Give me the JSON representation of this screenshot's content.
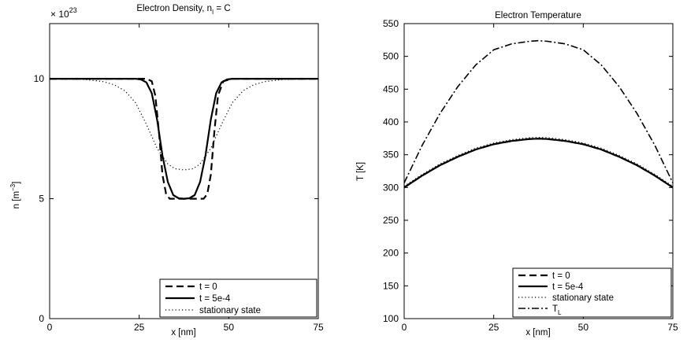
{
  "chart_data": [
    {
      "type": "line",
      "title": "Electron Density, n",
      "title_sub": "I",
      "title_suffix": " = C",
      "xlabel": "x [nm]",
      "ylabel": "n [m",
      "ylabel_sup": "−3",
      "ylabel_suffix": "]",
      "exponent_prefix": "× 10",
      "exponent_power": "23",
      "xlim": [
        0,
        75
      ],
      "ylim": [
        0,
        12.3
      ],
      "xticks": [
        0,
        25,
        50,
        75
      ],
      "xtick_labels": [
        "0",
        "25",
        "50",
        "75"
      ],
      "yticks": [
        0,
        5,
        10
      ],
      "ytick_labels": [
        "0",
        "5",
        "10"
      ],
      "legend_position": "bottom-right",
      "series": [
        {
          "name": "t = 0",
          "style": "dashed",
          "x": [
            0,
            25,
            27,
            28.5,
            29.5,
            30.5,
            31.5,
            32.5,
            33.5,
            40,
            43,
            44,
            45,
            46,
            47,
            48.5,
            51,
            75
          ],
          "y": [
            10,
            10,
            10,
            9.9,
            9.3,
            7.8,
            6.0,
            5.2,
            5.0,
            5.0,
            5.0,
            5.2,
            6.0,
            7.8,
            9.3,
            9.9,
            10,
            10
          ]
        },
        {
          "name": "t = 5e-4",
          "style": "solid",
          "x": [
            0,
            24,
            25.5,
            27,
            28.5,
            30,
            31.5,
            33,
            34.5,
            36,
            37.5,
            39,
            40.5,
            42,
            43.5,
            45,
            46.5,
            48,
            49.5,
            51,
            75
          ],
          "y": [
            10,
            10,
            9.97,
            9.85,
            9.4,
            8.3,
            6.8,
            5.7,
            5.15,
            5.02,
            5.0,
            5.02,
            5.15,
            5.7,
            6.8,
            8.3,
            9.4,
            9.85,
            9.97,
            10,
            10
          ]
        },
        {
          "name": "stationary state",
          "style": "dotted",
          "x": [
            0,
            10,
            15,
            18,
            21,
            24,
            27,
            30,
            33,
            35,
            37.5,
            40,
            42,
            45,
            48,
            51,
            54,
            57,
            60,
            65,
            75
          ],
          "y": [
            10,
            9.97,
            9.88,
            9.75,
            9.5,
            9.0,
            8.1,
            7.1,
            6.45,
            6.25,
            6.2,
            6.25,
            6.45,
            7.1,
            8.1,
            9.0,
            9.5,
            9.75,
            9.88,
            9.97,
            10
          ]
        }
      ]
    },
    {
      "type": "line",
      "title": "Electron Temperature",
      "xlabel": "x [nm]",
      "ylabel": "T [K]",
      "xlim": [
        0,
        75
      ],
      "ylim": [
        100,
        550
      ],
      "xticks": [
        0,
        25,
        50,
        75
      ],
      "xtick_labels": [
        "0",
        "25",
        "50",
        "75"
      ],
      "yticks": [
        100,
        150,
        200,
        250,
        300,
        350,
        400,
        450,
        500,
        550
      ],
      "ytick_labels": [
        "100",
        "150",
        "200",
        "250",
        "300",
        "350",
        "400",
        "450",
        "500",
        "550"
      ],
      "legend_position": "bottom-right",
      "series": [
        {
          "name": "t = 0",
          "style": "dashed",
          "x": [
            0,
            5,
            10,
            15,
            20,
            25,
            30,
            35,
            37.5,
            40,
            45,
            50,
            55,
            60,
            65,
            70,
            75
          ],
          "y": [
            300,
            318,
            334,
            347,
            358,
            366,
            371,
            374,
            374.5,
            374,
            371,
            366,
            358,
            347,
            334,
            318,
            300
          ]
        },
        {
          "name": "t = 5e-4",
          "style": "solid",
          "x": [
            0,
            5,
            10,
            15,
            20,
            25,
            30,
            35,
            37.5,
            40,
            45,
            50,
            55,
            60,
            65,
            70,
            75
          ],
          "y": [
            300,
            318,
            334,
            347,
            358,
            366,
            371,
            374,
            374.5,
            374,
            371,
            366,
            358,
            347,
            334,
            318,
            300
          ]
        },
        {
          "name": "stationary state",
          "style": "dotted",
          "x": [
            0,
            5,
            10,
            15,
            20,
            25,
            30,
            35,
            37.5,
            40,
            45,
            50,
            55,
            60,
            65,
            70,
            75
          ],
          "y": [
            302,
            320,
            336,
            349,
            360,
            368,
            373,
            376,
            376.5,
            376,
            373,
            368,
            360,
            349,
            336,
            320,
            302
          ]
        },
        {
          "name": "T",
          "name_sub": "L",
          "style": "dashdot",
          "x": [
            0,
            5,
            10,
            15,
            20,
            25,
            30,
            35,
            37.5,
            40,
            45,
            50,
            55,
            60,
            65,
            70,
            75
          ],
          "y": [
            307,
            364,
            413,
            454,
            487,
            510,
            519,
            523,
            524,
            523,
            519,
            510,
            487,
            454,
            413,
            364,
            307
          ]
        }
      ]
    }
  ]
}
